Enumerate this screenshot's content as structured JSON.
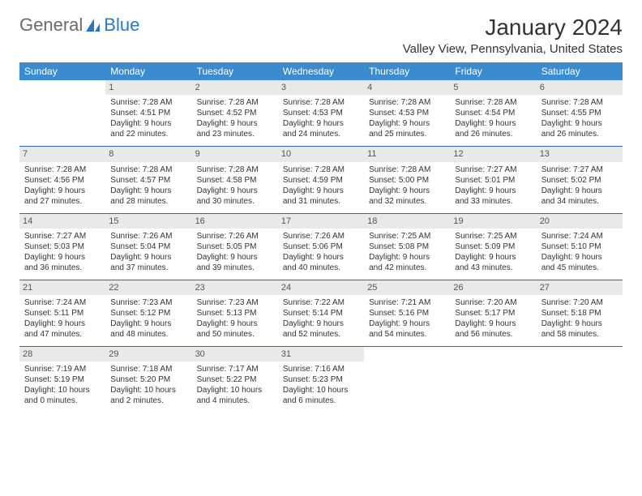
{
  "brand": {
    "text1": "General",
    "text2": "Blue",
    "logo_color": "#2b77c0"
  },
  "header": {
    "title": "January 2024",
    "location": "Valley View, Pennsylvania, United States",
    "title_fontsize": 28,
    "location_fontsize": 15
  },
  "calendar": {
    "type": "table",
    "header_bg": "#3b8bd0",
    "header_fg": "#ffffff",
    "row_border_color": "#2b6aa8",
    "daynum_bg": "#e9e9e9",
    "daynum_fg": "#555555",
    "cell_fontsize": 10,
    "columns": [
      "Sunday",
      "Monday",
      "Tuesday",
      "Wednesday",
      "Thursday",
      "Friday",
      "Saturday"
    ],
    "weeks": [
      [
        {
          "day": "",
          "sunrise": "",
          "sunset": "",
          "daylight1": "",
          "daylight2": "",
          "empty": true
        },
        {
          "day": "1",
          "sunrise": "Sunrise: 7:28 AM",
          "sunset": "Sunset: 4:51 PM",
          "daylight1": "Daylight: 9 hours",
          "daylight2": "and 22 minutes."
        },
        {
          "day": "2",
          "sunrise": "Sunrise: 7:28 AM",
          "sunset": "Sunset: 4:52 PM",
          "daylight1": "Daylight: 9 hours",
          "daylight2": "and 23 minutes."
        },
        {
          "day": "3",
          "sunrise": "Sunrise: 7:28 AM",
          "sunset": "Sunset: 4:53 PM",
          "daylight1": "Daylight: 9 hours",
          "daylight2": "and 24 minutes."
        },
        {
          "day": "4",
          "sunrise": "Sunrise: 7:28 AM",
          "sunset": "Sunset: 4:53 PM",
          "daylight1": "Daylight: 9 hours",
          "daylight2": "and 25 minutes."
        },
        {
          "day": "5",
          "sunrise": "Sunrise: 7:28 AM",
          "sunset": "Sunset: 4:54 PM",
          "daylight1": "Daylight: 9 hours",
          "daylight2": "and 26 minutes."
        },
        {
          "day": "6",
          "sunrise": "Sunrise: 7:28 AM",
          "sunset": "Sunset: 4:55 PM",
          "daylight1": "Daylight: 9 hours",
          "daylight2": "and 26 minutes."
        }
      ],
      [
        {
          "day": "7",
          "sunrise": "Sunrise: 7:28 AM",
          "sunset": "Sunset: 4:56 PM",
          "daylight1": "Daylight: 9 hours",
          "daylight2": "and 27 minutes."
        },
        {
          "day": "8",
          "sunrise": "Sunrise: 7:28 AM",
          "sunset": "Sunset: 4:57 PM",
          "daylight1": "Daylight: 9 hours",
          "daylight2": "and 28 minutes."
        },
        {
          "day": "9",
          "sunrise": "Sunrise: 7:28 AM",
          "sunset": "Sunset: 4:58 PM",
          "daylight1": "Daylight: 9 hours",
          "daylight2": "and 30 minutes."
        },
        {
          "day": "10",
          "sunrise": "Sunrise: 7:28 AM",
          "sunset": "Sunset: 4:59 PM",
          "daylight1": "Daylight: 9 hours",
          "daylight2": "and 31 minutes."
        },
        {
          "day": "11",
          "sunrise": "Sunrise: 7:28 AM",
          "sunset": "Sunset: 5:00 PM",
          "daylight1": "Daylight: 9 hours",
          "daylight2": "and 32 minutes."
        },
        {
          "day": "12",
          "sunrise": "Sunrise: 7:27 AM",
          "sunset": "Sunset: 5:01 PM",
          "daylight1": "Daylight: 9 hours",
          "daylight2": "and 33 minutes."
        },
        {
          "day": "13",
          "sunrise": "Sunrise: 7:27 AM",
          "sunset": "Sunset: 5:02 PM",
          "daylight1": "Daylight: 9 hours",
          "daylight2": "and 34 minutes."
        }
      ],
      [
        {
          "day": "14",
          "sunrise": "Sunrise: 7:27 AM",
          "sunset": "Sunset: 5:03 PM",
          "daylight1": "Daylight: 9 hours",
          "daylight2": "and 36 minutes."
        },
        {
          "day": "15",
          "sunrise": "Sunrise: 7:26 AM",
          "sunset": "Sunset: 5:04 PM",
          "daylight1": "Daylight: 9 hours",
          "daylight2": "and 37 minutes."
        },
        {
          "day": "16",
          "sunrise": "Sunrise: 7:26 AM",
          "sunset": "Sunset: 5:05 PM",
          "daylight1": "Daylight: 9 hours",
          "daylight2": "and 39 minutes."
        },
        {
          "day": "17",
          "sunrise": "Sunrise: 7:26 AM",
          "sunset": "Sunset: 5:06 PM",
          "daylight1": "Daylight: 9 hours",
          "daylight2": "and 40 minutes."
        },
        {
          "day": "18",
          "sunrise": "Sunrise: 7:25 AM",
          "sunset": "Sunset: 5:08 PM",
          "daylight1": "Daylight: 9 hours",
          "daylight2": "and 42 minutes."
        },
        {
          "day": "19",
          "sunrise": "Sunrise: 7:25 AM",
          "sunset": "Sunset: 5:09 PM",
          "daylight1": "Daylight: 9 hours",
          "daylight2": "and 43 minutes."
        },
        {
          "day": "20",
          "sunrise": "Sunrise: 7:24 AM",
          "sunset": "Sunset: 5:10 PM",
          "daylight1": "Daylight: 9 hours",
          "daylight2": "and 45 minutes."
        }
      ],
      [
        {
          "day": "21",
          "sunrise": "Sunrise: 7:24 AM",
          "sunset": "Sunset: 5:11 PM",
          "daylight1": "Daylight: 9 hours",
          "daylight2": "and 47 minutes."
        },
        {
          "day": "22",
          "sunrise": "Sunrise: 7:23 AM",
          "sunset": "Sunset: 5:12 PM",
          "daylight1": "Daylight: 9 hours",
          "daylight2": "and 48 minutes."
        },
        {
          "day": "23",
          "sunrise": "Sunrise: 7:23 AM",
          "sunset": "Sunset: 5:13 PM",
          "daylight1": "Daylight: 9 hours",
          "daylight2": "and 50 minutes."
        },
        {
          "day": "24",
          "sunrise": "Sunrise: 7:22 AM",
          "sunset": "Sunset: 5:14 PM",
          "daylight1": "Daylight: 9 hours",
          "daylight2": "and 52 minutes."
        },
        {
          "day": "25",
          "sunrise": "Sunrise: 7:21 AM",
          "sunset": "Sunset: 5:16 PM",
          "daylight1": "Daylight: 9 hours",
          "daylight2": "and 54 minutes."
        },
        {
          "day": "26",
          "sunrise": "Sunrise: 7:20 AM",
          "sunset": "Sunset: 5:17 PM",
          "daylight1": "Daylight: 9 hours",
          "daylight2": "and 56 minutes."
        },
        {
          "day": "27",
          "sunrise": "Sunrise: 7:20 AM",
          "sunset": "Sunset: 5:18 PM",
          "daylight1": "Daylight: 9 hours",
          "daylight2": "and 58 minutes."
        }
      ],
      [
        {
          "day": "28",
          "sunrise": "Sunrise: 7:19 AM",
          "sunset": "Sunset: 5:19 PM",
          "daylight1": "Daylight: 10 hours",
          "daylight2": "and 0 minutes."
        },
        {
          "day": "29",
          "sunrise": "Sunrise: 7:18 AM",
          "sunset": "Sunset: 5:20 PM",
          "daylight1": "Daylight: 10 hours",
          "daylight2": "and 2 minutes."
        },
        {
          "day": "30",
          "sunrise": "Sunrise: 7:17 AM",
          "sunset": "Sunset: 5:22 PM",
          "daylight1": "Daylight: 10 hours",
          "daylight2": "and 4 minutes."
        },
        {
          "day": "31",
          "sunrise": "Sunrise: 7:16 AM",
          "sunset": "Sunset: 5:23 PM",
          "daylight1": "Daylight: 10 hours",
          "daylight2": "and 6 minutes."
        },
        {
          "day": "",
          "sunrise": "",
          "sunset": "",
          "daylight1": "",
          "daylight2": "",
          "empty": true
        },
        {
          "day": "",
          "sunrise": "",
          "sunset": "",
          "daylight1": "",
          "daylight2": "",
          "empty": true
        },
        {
          "day": "",
          "sunrise": "",
          "sunset": "",
          "daylight1": "",
          "daylight2": "",
          "empty": true
        }
      ]
    ]
  }
}
